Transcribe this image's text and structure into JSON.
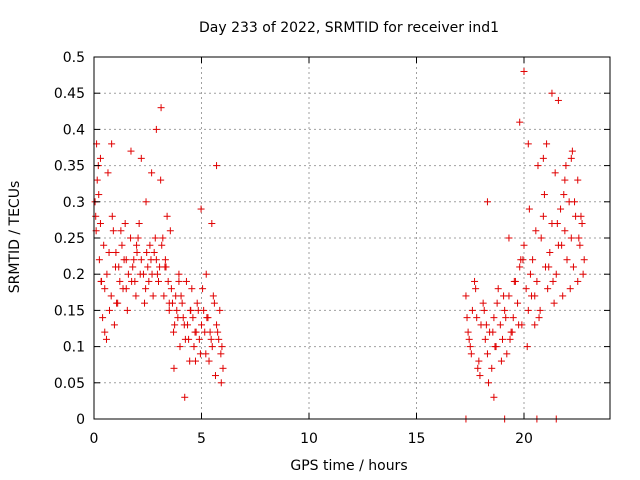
{
  "chart_data": {
    "type": "scatter",
    "title": "Day 233 of 2022, SRMTID for receiver ind1",
    "xlabel": "GPS time / hours",
    "ylabel": "SRMTID / TECUs",
    "xlim": [
      0,
      24
    ],
    "ylim": [
      0,
      0.5
    ],
    "x_ticks": [
      0,
      5,
      10,
      15,
      20
    ],
    "y_ticks": [
      0,
      0.05,
      0.1,
      0.15,
      0.2,
      0.25,
      0.3,
      0.35,
      0.4,
      0.45,
      0.5
    ],
    "x_tick_labels": [
      "0",
      "5",
      "10",
      "15",
      "20"
    ],
    "y_tick_labels": [
      "0",
      "0.05",
      "0.1",
      "0.15",
      "0.2",
      "0.25",
      "0.3",
      "0.35",
      "0.4",
      "0.45",
      "0.5"
    ],
    "grid": true,
    "marker": "+",
    "color": "#e00000",
    "series": [
      {
        "name": "SRMTID",
        "x": [
          0.05,
          0.1,
          0.15,
          0.2,
          0.25,
          0.3,
          0.35,
          0.4,
          0.5,
          0.6,
          0.7,
          0.8,
          0.9,
          1.0,
          1.1,
          1.2,
          1.3,
          1.4,
          1.5,
          1.6,
          1.7,
          1.8,
          1.9,
          2.0,
          2.1,
          2.2,
          2.3,
          2.4,
          2.5,
          2.6,
          2.7,
          2.8,
          2.9,
          3.0,
          3.1,
          3.2,
          3.3,
          3.4,
          3.5,
          3.6,
          3.7,
          3.8,
          3.9,
          4.0,
          4.1,
          4.2,
          4.3,
          4.4,
          4.5,
          4.6,
          4.7,
          4.8,
          4.9,
          5.0,
          5.1,
          5.2,
          5.3,
          5.4,
          5.5,
          5.6,
          5.7,
          5.8,
          5.9,
          6.0,
          0.08,
          0.22,
          0.33,
          0.45,
          0.58,
          0.72,
          0.85,
          0.95,
          1.05,
          1.15,
          1.35,
          1.45,
          1.55,
          1.75,
          1.85,
          1.95,
          2.05,
          2.15,
          2.35,
          2.45,
          2.55,
          2.65,
          2.75,
          2.85,
          2.95,
          3.05,
          3.15,
          3.25,
          3.35,
          3.45,
          3.55,
          3.65,
          3.75,
          3.85,
          3.95,
          4.05,
          4.15,
          4.25,
          4.35,
          4.45,
          4.55,
          4.65,
          4.75,
          4.85,
          4.95,
          5.05,
          5.15,
          5.25,
          5.35,
          5.45,
          5.55,
          5.65,
          5.75,
          5.85,
          5.95,
          0.12,
          0.3,
          0.5,
          0.65,
          0.82,
          1.02,
          1.25,
          1.5,
          1.72,
          1.98,
          2.2,
          2.42,
          2.68,
          2.9,
          3.12,
          3.32,
          3.5,
          3.72,
          3.95,
          4.22,
          4.48,
          4.72,
          4.98,
          5.22,
          5.48,
          5.7,
          5.92,
          17.3,
          17.4,
          17.5,
          17.6,
          17.7,
          17.8,
          17.9,
          18.0,
          18.1,
          18.2,
          18.3,
          18.4,
          18.5,
          18.6,
          18.7,
          18.8,
          18.9,
          19.0,
          19.1,
          19.2,
          19.3,
          19.4,
          19.5,
          19.6,
          19.7,
          19.8,
          19.9,
          20.0,
          20.1,
          20.2,
          20.3,
          20.4,
          20.5,
          20.6,
          20.7,
          20.8,
          20.9,
          21.0,
          21.1,
          21.2,
          21.3,
          21.4,
          21.5,
          21.6,
          21.7,
          21.8,
          21.9,
          22.0,
          22.1,
          22.2,
          22.3,
          22.4,
          22.5,
          22.6,
          22.7,
          22.8,
          17.35,
          17.55,
          17.75,
          17.95,
          18.15,
          18.35,
          18.55,
          18.75,
          18.95,
          19.15,
          19.35,
          19.55,
          19.75,
          19.95,
          20.15,
          20.35,
          20.55,
          20.75,
          20.95,
          21.15,
          21.35,
          21.55,
          21.75,
          21.95,
          22.15,
          22.35,
          22.55,
          22.75,
          17.45,
          17.85,
          18.25,
          18.65,
          19.05,
          19.45,
          19.85,
          20.25,
          20.65,
          21.05,
          21.45,
          21.85,
          22.25,
          22.65,
          18.3,
          18.6,
          19.3,
          19.8,
          20.0,
          20.2,
          20.5,
          20.9,
          21.3,
          21.6,
          21.9,
          22.2,
          22.5,
          17.3,
          19.1,
          20.6,
          21.5
        ],
        "y": [
          0.3,
          0.26,
          0.33,
          0.35,
          0.22,
          0.27,
          0.19,
          0.14,
          0.12,
          0.2,
          0.23,
          0.17,
          0.26,
          0.21,
          0.16,
          0.19,
          0.24,
          0.22,
          0.18,
          0.2,
          0.25,
          0.21,
          0.19,
          0.23,
          0.27,
          0.22,
          0.2,
          0.18,
          0.21,
          0.24,
          0.2,
          0.23,
          0.22,
          0.19,
          0.33,
          0.25,
          0.21,
          0.28,
          0.15,
          0.18,
          0.12,
          0.17,
          0.14,
          0.1,
          0.16,
          0.13,
          0.19,
          0.11,
          0.15,
          0.14,
          0.12,
          0.16,
          0.11,
          0.13,
          0.15,
          0.09,
          0.14,
          0.12,
          0.1,
          0.16,
          0.13,
          0.11,
          0.09,
          0.07,
          0.28,
          0.31,
          0.19,
          0.24,
          0.11,
          0.15,
          0.28,
          0.13,
          0.16,
          0.21,
          0.18,
          0.27,
          0.15,
          0.19,
          0.22,
          0.17,
          0.25,
          0.2,
          0.16,
          0.23,
          0.19,
          0.22,
          0.17,
          0.25,
          0.2,
          0.21,
          0.24,
          0.17,
          0.21,
          0.19,
          0.26,
          0.16,
          0.13,
          0.15,
          0.2,
          0.17,
          0.14,
          0.11,
          0.13,
          0.08,
          0.18,
          0.1,
          0.12,
          0.15,
          0.09,
          0.18,
          0.12,
          0.14,
          0.08,
          0.11,
          0.17,
          0.06,
          0.12,
          0.15,
          0.1,
          0.38,
          0.36,
          0.18,
          0.34,
          0.38,
          0.23,
          0.26,
          0.22,
          0.37,
          0.24,
          0.36,
          0.3,
          0.34,
          0.4,
          0.43,
          0.22,
          0.16,
          0.07,
          0.19,
          0.03,
          0.15,
          0.08,
          0.29,
          0.2,
          0.27,
          0.35,
          0.05,
          0.17,
          0.12,
          0.1,
          0.15,
          0.19,
          0.14,
          0.08,
          0.13,
          0.16,
          0.11,
          0.09,
          0.12,
          0.07,
          0.14,
          0.1,
          0.18,
          0.13,
          0.11,
          0.15,
          0.09,
          0.17,
          0.12,
          0.14,
          0.19,
          0.16,
          0.21,
          0.13,
          0.24,
          0.18,
          0.15,
          0.2,
          0.22,
          0.17,
          0.19,
          0.14,
          0.25,
          0.28,
          0.21,
          0.18,
          0.23,
          0.27,
          0.16,
          0.2,
          0.24,
          0.29,
          0.17,
          0.26,
          0.22,
          0.3,
          0.25,
          0.21,
          0.28,
          0.33,
          0.24,
          0.27,
          0.22,
          0.14,
          0.09,
          0.18,
          0.06,
          0.15,
          0.05,
          0.12,
          0.16,
          0.08,
          0.14,
          0.11,
          0.19,
          0.13,
          0.22,
          0.1,
          0.17,
          0.26,
          0.15,
          0.31,
          0.21,
          0.19,
          0.27,
          0.24,
          0.35,
          0.18,
          0.3,
          0.25,
          0.2,
          0.11,
          0.07,
          0.13,
          0.1,
          0.17,
          0.12,
          0.22,
          0.29,
          0.35,
          0.38,
          0.34,
          0.31,
          0.37,
          0.28,
          0.3,
          0.03,
          0.25,
          0.41,
          0.48,
          0.38,
          0.13,
          0.36,
          0.45,
          0.44,
          0.33,
          0.36,
          0.19,
          0.0,
          0.0,
          0.0,
          0.0
        ]
      }
    ]
  }
}
